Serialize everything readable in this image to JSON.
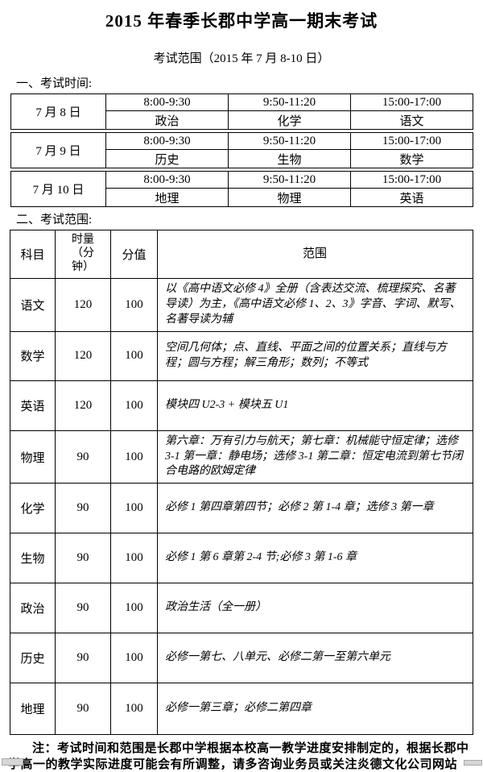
{
  "page": {
    "title": "2015 年春季长郡中学高一期末考试",
    "subtitle": "考试范围（2015 年 7 月 8-10 日）",
    "section1_heading": "一、考试时间:",
    "section2_heading": "二、考试范围:",
    "note": "注：考试时间和范围是长郡中学根据本校高一教学进度安排制定的，根据长郡中学高一的教学实际进度可能会有所调整，请多咨询业务员或关注炎德文化公司网站"
  },
  "exam_schedule": {
    "days": [
      {
        "date": "7 月 8 日",
        "slots": [
          {
            "time": "8:00-9:30",
            "subject": "政治"
          },
          {
            "time": "9:50-11:20",
            "subject": "化学"
          },
          {
            "time": "15:00-17:00",
            "subject": "语文"
          }
        ]
      },
      {
        "date": "7 月 9 日",
        "slots": [
          {
            "time": "8:00-9:30",
            "subject": "历史"
          },
          {
            "time": "9:50-11:20",
            "subject": "生物"
          },
          {
            "time": "15:00-17:00",
            "subject": "数学"
          }
        ]
      },
      {
        "date": "7 月 10 日",
        "slots": [
          {
            "time": "8:00-9:30",
            "subject": "地理"
          },
          {
            "time": "9:50-11:20",
            "subject": "物理"
          },
          {
            "time": "15:00-17:00",
            "subject": "英语"
          }
        ]
      }
    ]
  },
  "exam_scope": {
    "headers": {
      "subject": "科目",
      "duration": "时量\n（分\n钟）",
      "score": "分值",
      "scope": "范围"
    },
    "rows": [
      {
        "subject": "语文",
        "duration": "120",
        "score": "100",
        "scope": "以《高中语文必修 4》全册（含表达交流、梳理探究、名著导读）为主，《高中语文必修 1、2、3》字音、字词、默写、名著导读为辅"
      },
      {
        "subject": "数学",
        "duration": "120",
        "score": "100",
        "scope": "空间几何体；点、直线、平面之间的位置关系；直线与方程；圆与方程；解三角形；数列；不等式"
      },
      {
        "subject": "英语",
        "duration": "120",
        "score": "100",
        "scope": "模块四 U2-3 +  模块五 U1"
      },
      {
        "subject": "物理",
        "duration": "90",
        "score": "100",
        "scope": "第六章：万有引力与航天；第七章：机械能守恒定律；选修 3-1 第一章：静电场；选修 3-1 第二章：恒定电流到第七节闭合电路的欧姆定律"
      },
      {
        "subject": "化学",
        "duration": "90",
        "score": "100",
        "scope": "必修 1 第四章第四节；必修 2 第 1-4 章；选修 3 第一章"
      },
      {
        "subject": "生物",
        "duration": "90",
        "score": "100",
        "scope": "必修 1 第 6 章第 2-4 节;必修 3 第 1-6 章"
      },
      {
        "subject": "政治",
        "duration": "90",
        "score": "100",
        "scope": "政治生活（全一册）"
      },
      {
        "subject": "历史",
        "duration": "90",
        "score": "100",
        "scope": "必修一第七、八单元、必修二第一至第六单元"
      },
      {
        "subject": "地理",
        "duration": "90",
        "score": "100",
        "scope": "必修一第三章；必修二第四章"
      }
    ]
  }
}
